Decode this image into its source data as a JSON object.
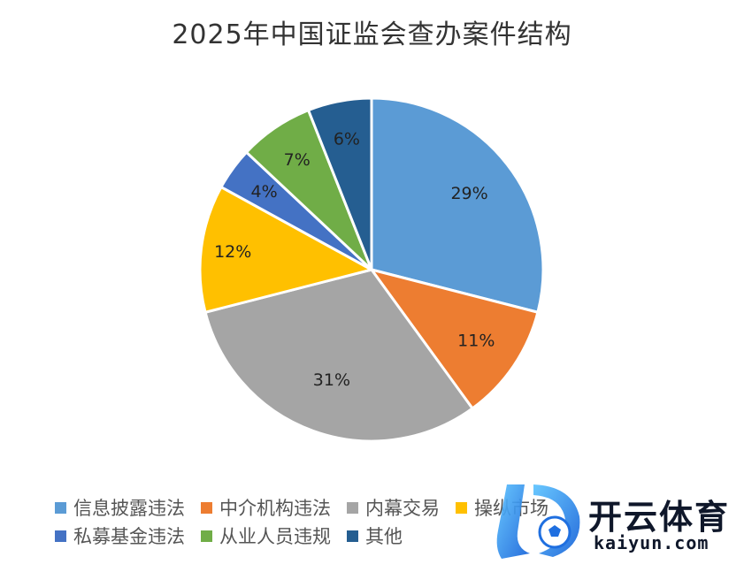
{
  "chart_data": {
    "type": "pie",
    "title": "2025年中国证监会查办案件结构",
    "slices": [
      {
        "label": "信息披露违法",
        "value": 29,
        "display": "29%",
        "color": "#5b9bd5"
      },
      {
        "label": "中介机构违法",
        "value": 11,
        "display": "11%",
        "color": "#ed7d31"
      },
      {
        "label": "内幕交易",
        "value": 31,
        "display": "31%",
        "color": "#a5a5a5"
      },
      {
        "label": "操纵市场",
        "value": 12,
        "display": "12%",
        "color": "#ffc000"
      },
      {
        "label": "私募基金违法",
        "value": 4,
        "display": "4%",
        "color": "#4472c4"
      },
      {
        "label": "从业人员违规",
        "value": 7,
        "display": "7%",
        "color": "#70ad47"
      },
      {
        "label": "其他",
        "value": 6,
        "display": "6%",
        "color": "#255e91"
      }
    ],
    "legend_position": "bottom"
  },
  "watermark": {
    "brand": "开云体育",
    "domain": "kaiyun.com"
  }
}
